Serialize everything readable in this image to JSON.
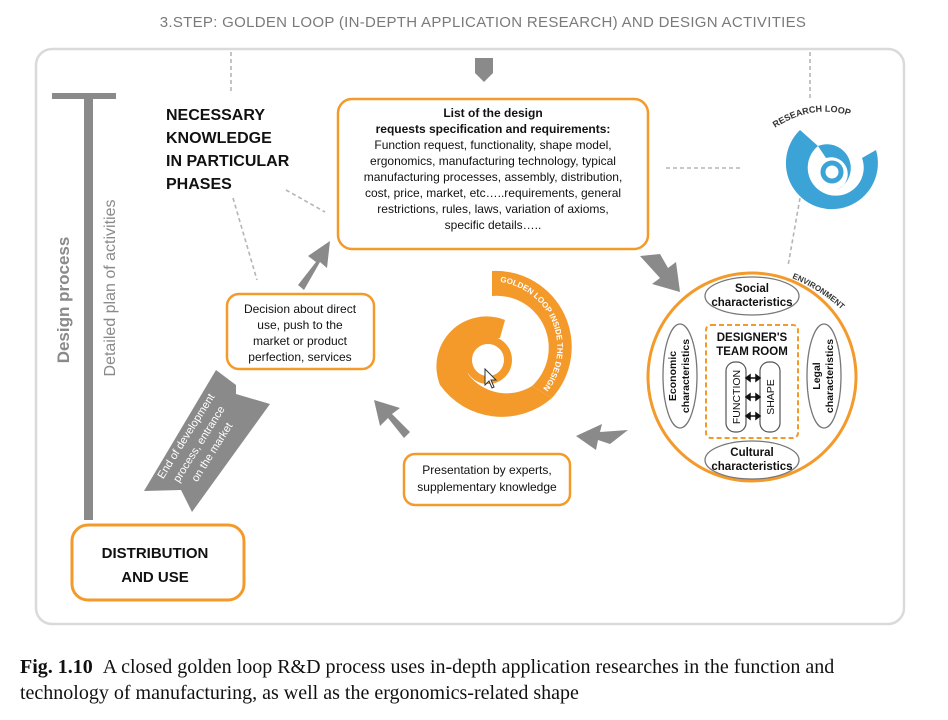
{
  "step_title": "3.STEP: GOLDEN LOOP (IN-DEPTH APPLICATION RESEARCH) AND DESIGN ACTIVITIES",
  "design_process_label": "Design process",
  "detailed_plan_label": "Detailed plan of activities",
  "necessary_knowledge": [
    "NECESSARY",
    "KNOWLEDGE",
    "IN PARTICULAR",
    "PHASES"
  ],
  "requirements_box": {
    "heading": [
      "List of the design",
      "requests specification and requirements:"
    ],
    "body": [
      "Function request, functionality, shape model,",
      "ergonomics, manufacturing technology, typical",
      "manufacturing processes, assembly, distribution,",
      "cost, price, market, etc…..requirements, general",
      "restrictions, rules, laws, variation of axioms,",
      "specific details….."
    ]
  },
  "research_loop_label": "RESEARCH LOOP",
  "environment_label": "ENVIRONMENT",
  "social": [
    "Social",
    "characteristics"
  ],
  "cultural": [
    "Cultural",
    "characteristics"
  ],
  "economic": [
    "Economic",
    "characteristics"
  ],
  "legal": [
    "Legal",
    "characteristics"
  ],
  "team_room": [
    "DESIGNER'S",
    "TEAM ROOM"
  ],
  "function_label": "FUNCTION",
  "shape_label": "SHAPE",
  "golden_loop_label": "GOLDEN LOOP INSIDE THE DESIGN PROCESS",
  "decision_box": [
    "Decision about direct",
    "use,  push to the",
    "market or product",
    "perfection, services"
  ],
  "presentation_box": [
    "Presentation by experts,",
    "supplementary knowledge"
  ],
  "end_of_development": [
    "End of development",
    "process, entrance",
    "on the market"
  ],
  "distribution_box": [
    "DISTRIBUTION",
    "AND  USE"
  ],
  "caption": {
    "label": "Fig. 1.10",
    "text": "A closed golden loop R&D process uses in-depth application researches in the function and technology of manufacturing, as well as the ergonomics-related shape"
  },
  "colors": {
    "orange": "#F39A2B",
    "gray": "#8A8A8A",
    "blue": "#3CA3D6",
    "frame": "#DADADA"
  }
}
